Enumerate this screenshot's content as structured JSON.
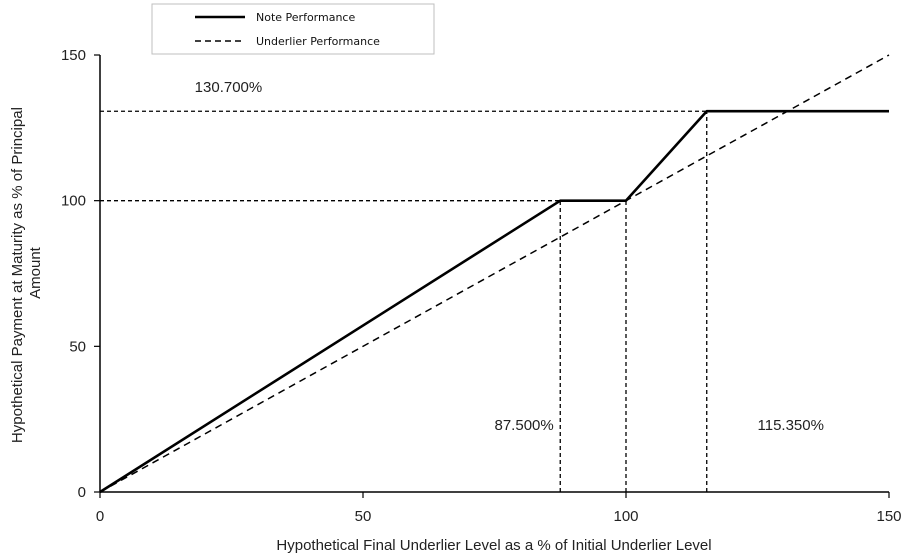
{
  "chart_data": {
    "type": "line",
    "title": "",
    "xlabel": "Hypothetical Final Underlier Level as a % of Initial Underlier Level",
    "ylabel_lines": [
      "Hypothetical Payment at Maturity as % of Principal",
      "Amount"
    ],
    "xlim": [
      0,
      150
    ],
    "ylim": [
      0,
      150
    ],
    "xticks": [
      0,
      50,
      100,
      150
    ],
    "yticks": [
      0,
      50,
      100,
      150
    ],
    "grid": false,
    "legend_placement": "top-left",
    "series": [
      {
        "name": "Note Performance",
        "style": "solid",
        "x": [
          0,
          87.5,
          100,
          115.35,
          150
        ],
        "y": [
          0,
          100,
          100,
          130.7,
          130.7
        ]
      },
      {
        "name": "Underlier Performance",
        "style": "dashed",
        "x": [
          0,
          150
        ],
        "y": [
          0,
          150
        ]
      }
    ],
    "reference_lines": [
      {
        "orientation": "horizontal",
        "value": 130.7,
        "from": 0,
        "to": 115.35
      },
      {
        "orientation": "horizontal",
        "value": 100,
        "from": 0,
        "to": 87.5
      },
      {
        "orientation": "vertical",
        "value": 87.5,
        "from": 0,
        "to": 100
      },
      {
        "orientation": "vertical",
        "value": 100,
        "from": 0,
        "to": 100
      },
      {
        "orientation": "vertical",
        "value": 115.35,
        "from": 0,
        "to": 130.7
      }
    ],
    "annotations": [
      {
        "text": "130.700%",
        "x": 18,
        "y": 139
      },
      {
        "text": "87.500%",
        "x": 75,
        "y": 23
      },
      {
        "text": "115.350%",
        "x": 125,
        "y": 23
      }
    ]
  },
  "colors": {
    "line": "#000000",
    "axis": "#000000"
  }
}
